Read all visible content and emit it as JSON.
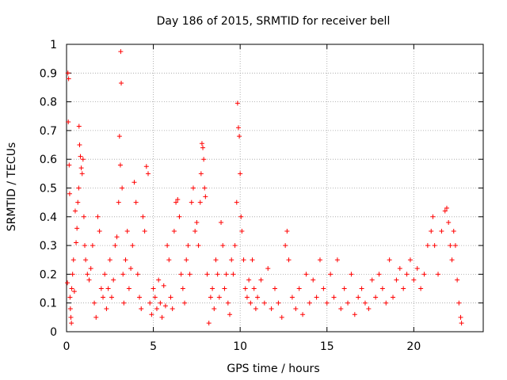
{
  "chart_data": {
    "type": "scatter",
    "title": "Day 186 of 2015, SRMTID for receiver bell",
    "xlabel": "GPS time / hours",
    "ylabel": "SRMTID / TECUs",
    "xlim": [
      0,
      24
    ],
    "ylim": [
      0,
      1
    ],
    "xticks": [
      0,
      5,
      10,
      15,
      20
    ],
    "xtick_labels": [
      "0",
      "5",
      "10",
      "15",
      "20"
    ],
    "yticks": [
      0,
      0.1,
      0.2,
      0.3,
      0.4,
      0.5,
      0.6,
      0.7,
      0.8,
      0.9,
      1
    ],
    "ytick_labels": [
      "0",
      "0.1",
      "0.2",
      "0.3",
      "0.4",
      "0.5",
      "0.6",
      "0.7",
      "0.8",
      "0.9",
      "1"
    ],
    "grid": true,
    "marker": "+",
    "color": "#ff0000",
    "series": [
      {
        "name": "SRMTID",
        "points": [
          [
            0.05,
            0.17
          ],
          [
            0.08,
            0.9
          ],
          [
            0.12,
            0.88
          ],
          [
            0.1,
            0.73
          ],
          [
            0.15,
            0.58
          ],
          [
            0.18,
            0.48
          ],
          [
            0.2,
            0.12
          ],
          [
            0.22,
            0.08
          ],
          [
            0.25,
            0.05
          ],
          [
            0.28,
            0.03
          ],
          [
            0.3,
            0.15
          ],
          [
            0.35,
            0.2
          ],
          [
            0.4,
            0.25
          ],
          [
            0.45,
            0.14
          ],
          [
            0.5,
            0.42
          ],
          [
            0.55,
            0.31
          ],
          [
            0.6,
            0.36
          ],
          [
            0.65,
            0.45
          ],
          [
            0.7,
            0.5
          ],
          [
            0.72,
            0.715
          ],
          [
            0.75,
            0.65
          ],
          [
            0.8,
            0.61
          ],
          [
            0.85,
            0.57
          ],
          [
            0.9,
            0.55
          ],
          [
            0.95,
            0.6
          ],
          [
            1.0,
            0.4
          ],
          [
            1.05,
            0.3
          ],
          [
            1.1,
            0.25
          ],
          [
            1.2,
            0.2
          ],
          [
            1.3,
            0.18
          ],
          [
            1.4,
            0.22
          ],
          [
            1.5,
            0.3
          ],
          [
            1.6,
            0.1
          ],
          [
            1.7,
            0.05
          ],
          [
            1.8,
            0.4
          ],
          [
            1.9,
            0.35
          ],
          [
            2.0,
            0.15
          ],
          [
            2.1,
            0.12
          ],
          [
            2.2,
            0.2
          ],
          [
            2.3,
            0.08
          ],
          [
            2.4,
            0.15
          ],
          [
            2.5,
            0.25
          ],
          [
            2.6,
            0.12
          ],
          [
            2.7,
            0.18
          ],
          [
            2.8,
            0.3
          ],
          [
            2.9,
            0.33
          ],
          [
            3.0,
            0.45
          ],
          [
            3.05,
            0.68
          ],
          [
            3.1,
            0.58
          ],
          [
            3.12,
            0.975
          ],
          [
            3.15,
            0.865
          ],
          [
            3.2,
            0.5
          ],
          [
            3.25,
            0.2
          ],
          [
            3.3,
            0.1
          ],
          [
            3.4,
            0.25
          ],
          [
            3.5,
            0.35
          ],
          [
            3.6,
            0.15
          ],
          [
            3.7,
            0.22
          ],
          [
            3.8,
            0.3
          ],
          [
            3.9,
            0.52
          ],
          [
            4.0,
            0.45
          ],
          [
            4.1,
            0.2
          ],
          [
            4.2,
            0.12
          ],
          [
            4.3,
            0.08
          ],
          [
            4.4,
            0.4
          ],
          [
            4.5,
            0.35
          ],
          [
            4.6,
            0.575
          ],
          [
            4.7,
            0.55
          ],
          [
            4.8,
            0.1
          ],
          [
            4.9,
            0.06
          ],
          [
            5.0,
            0.15
          ],
          [
            5.1,
            0.12
          ],
          [
            5.2,
            0.08
          ],
          [
            5.3,
            0.18
          ],
          [
            5.4,
            0.1
          ],
          [
            5.5,
            0.05
          ],
          [
            5.6,
            0.16
          ],
          [
            5.7,
            0.09
          ],
          [
            5.8,
            0.3
          ],
          [
            5.9,
            0.25
          ],
          [
            6.0,
            0.12
          ],
          [
            6.1,
            0.08
          ],
          [
            6.2,
            0.35
          ],
          [
            6.3,
            0.45
          ],
          [
            6.4,
            0.46
          ],
          [
            6.5,
            0.4
          ],
          [
            6.6,
            0.2
          ],
          [
            6.7,
            0.15
          ],
          [
            6.8,
            0.1
          ],
          [
            6.9,
            0.25
          ],
          [
            7.0,
            0.3
          ],
          [
            7.1,
            0.2
          ],
          [
            7.2,
            0.45
          ],
          [
            7.3,
            0.5
          ],
          [
            7.4,
            0.35
          ],
          [
            7.5,
            0.38
          ],
          [
            7.6,
            0.3
          ],
          [
            7.7,
            0.45
          ],
          [
            7.75,
            0.55
          ],
          [
            7.8,
            0.655
          ],
          [
            7.85,
            0.64
          ],
          [
            7.9,
            0.6
          ],
          [
            7.95,
            0.5
          ],
          [
            8.0,
            0.47
          ],
          [
            8.1,
            0.2
          ],
          [
            8.2,
            0.03
          ],
          [
            8.3,
            0.12
          ],
          [
            8.4,
            0.15
          ],
          [
            8.5,
            0.08
          ],
          [
            8.6,
            0.25
          ],
          [
            8.7,
            0.2
          ],
          [
            8.8,
            0.12
          ],
          [
            8.9,
            0.38
          ],
          [
            9.0,
            0.3
          ],
          [
            9.1,
            0.15
          ],
          [
            9.2,
            0.2
          ],
          [
            9.3,
            0.1
          ],
          [
            9.4,
            0.06
          ],
          [
            9.5,
            0.25
          ],
          [
            9.6,
            0.2
          ],
          [
            9.7,
            0.3
          ],
          [
            9.8,
            0.45
          ],
          [
            9.85,
            0.795
          ],
          [
            9.9,
            0.71
          ],
          [
            9.95,
            0.68
          ],
          [
            10.0,
            0.55
          ],
          [
            10.05,
            0.4
          ],
          [
            10.1,
            0.35
          ],
          [
            10.2,
            0.25
          ],
          [
            10.3,
            0.15
          ],
          [
            10.4,
            0.12
          ],
          [
            10.5,
            0.18
          ],
          [
            10.6,
            0.1
          ],
          [
            10.7,
            0.25
          ],
          [
            10.8,
            0.15
          ],
          [
            10.9,
            0.08
          ],
          [
            11.0,
            0.12
          ],
          [
            11.2,
            0.18
          ],
          [
            11.4,
            0.1
          ],
          [
            11.6,
            0.22
          ],
          [
            11.8,
            0.08
          ],
          [
            12.0,
            0.15
          ],
          [
            12.2,
            0.1
          ],
          [
            12.4,
            0.05
          ],
          [
            12.6,
            0.3
          ],
          [
            12.7,
            0.35
          ],
          [
            12.8,
            0.25
          ],
          [
            13.0,
            0.12
          ],
          [
            13.2,
            0.08
          ],
          [
            13.4,
            0.15
          ],
          [
            13.6,
            0.06
          ],
          [
            13.8,
            0.2
          ],
          [
            14.0,
            0.1
          ],
          [
            14.2,
            0.18
          ],
          [
            14.4,
            0.12
          ],
          [
            14.6,
            0.25
          ],
          [
            14.8,
            0.15
          ],
          [
            15.0,
            0.1
          ],
          [
            15.2,
            0.2
          ],
          [
            15.4,
            0.12
          ],
          [
            15.6,
            0.25
          ],
          [
            15.8,
            0.08
          ],
          [
            16.0,
            0.15
          ],
          [
            16.2,
            0.1
          ],
          [
            16.4,
            0.2
          ],
          [
            16.6,
            0.06
          ],
          [
            16.8,
            0.12
          ],
          [
            17.0,
            0.15
          ],
          [
            17.2,
            0.1
          ],
          [
            17.4,
            0.08
          ],
          [
            17.6,
            0.18
          ],
          [
            17.8,
            0.12
          ],
          [
            18.0,
            0.2
          ],
          [
            18.2,
            0.15
          ],
          [
            18.4,
            0.1
          ],
          [
            18.6,
            0.25
          ],
          [
            18.8,
            0.12
          ],
          [
            19.0,
            0.18
          ],
          [
            19.2,
            0.22
          ],
          [
            19.4,
            0.15
          ],
          [
            19.6,
            0.2
          ],
          [
            19.8,
            0.25
          ],
          [
            20.0,
            0.18
          ],
          [
            20.2,
            0.22
          ],
          [
            20.4,
            0.15
          ],
          [
            20.6,
            0.2
          ],
          [
            20.8,
            0.3
          ],
          [
            21.0,
            0.35
          ],
          [
            21.1,
            0.4
          ],
          [
            21.2,
            0.3
          ],
          [
            21.4,
            0.2
          ],
          [
            21.6,
            0.35
          ],
          [
            21.8,
            0.42
          ],
          [
            21.9,
            0.43
          ],
          [
            22.0,
            0.38
          ],
          [
            22.1,
            0.3
          ],
          [
            22.2,
            0.25
          ],
          [
            22.3,
            0.35
          ],
          [
            22.4,
            0.3
          ],
          [
            22.5,
            0.18
          ],
          [
            22.6,
            0.1
          ],
          [
            22.7,
            0.05
          ],
          [
            22.75,
            0.03
          ]
        ]
      }
    ]
  }
}
